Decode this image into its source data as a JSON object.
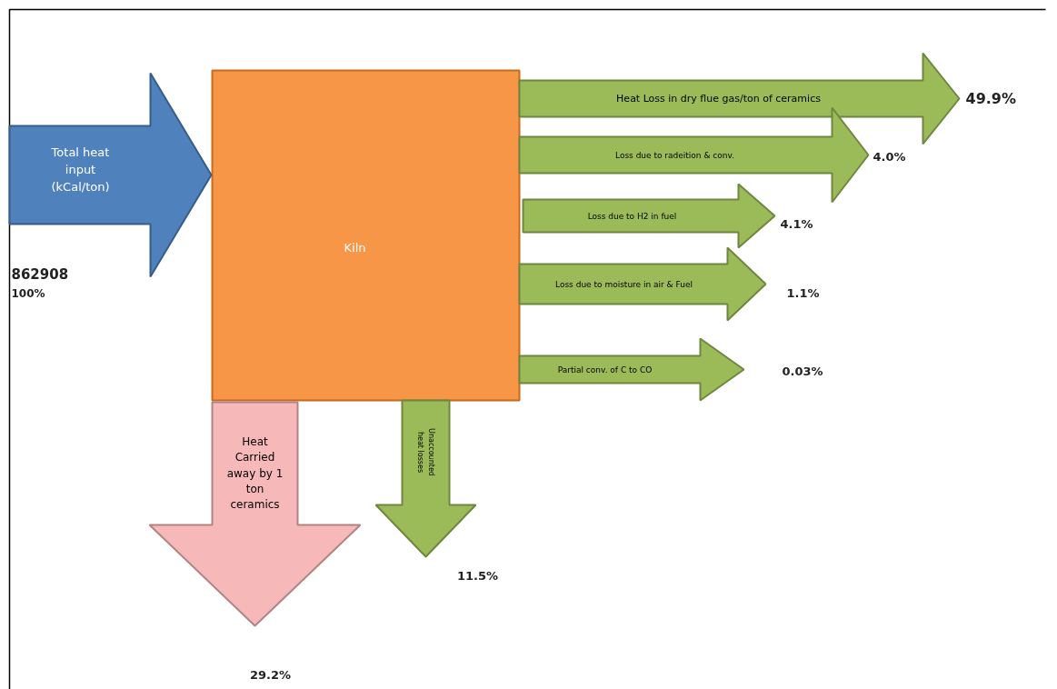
{
  "chart_data": {
    "type": "other",
    "categories": [
      "Total heat input (kCal/ton)",
      "Heat Loss in dry flue gas/ton of ceramics",
      "Loss due to radeition & conv.",
      "Loss due to H2 in fuel",
      "Loss due to moisture in air & Fuel",
      "Partial conv. of C to CO",
      "Heat Carried away by 1 ton ceramics",
      "Unaccounted heat losses"
    ],
    "values": [
      100,
      49.9,
      4.0,
      4.1,
      1.1,
      0.03,
      29.2,
      11.5
    ],
    "value_labels": [
      "100%",
      "49.9%",
      "4.0%",
      "4.1%",
      "1.1%",
      "0.03%",
      "29.2%",
      "11.5%"
    ],
    "colors": [
      "#4f81bd",
      "#9bbb59",
      "#9bbb59",
      "#9bbb59",
      "#9bbb59",
      "#9bbb59",
      "#f6b8b8",
      "#9bbb59"
    ],
    "annotations": [
      "862908",
      "Kiln"
    ]
  }
}
